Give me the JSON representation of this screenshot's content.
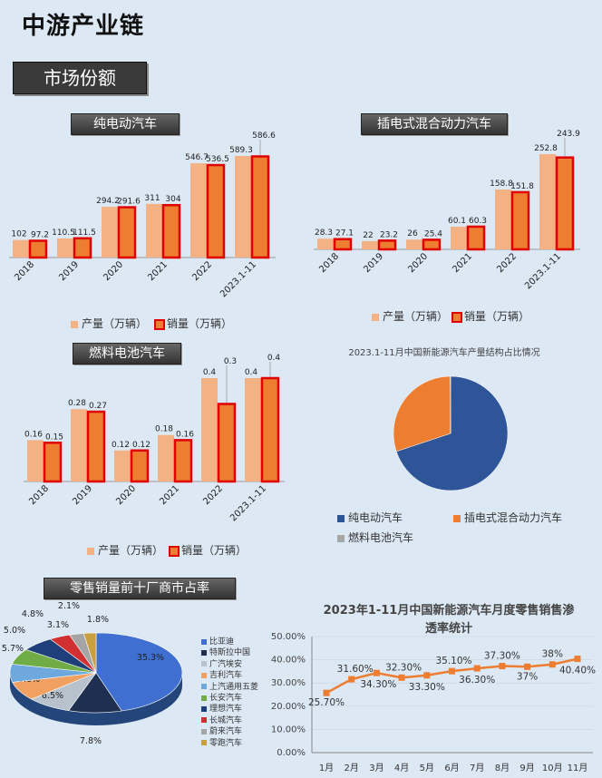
{
  "page": {
    "title": "中游产业链",
    "section": "市场份额"
  },
  "charts": {
    "bev": {
      "title": "纯电动汽车",
      "legend_production": "产量（万辆）",
      "legend_sales": "销量（万辆）"
    },
    "phev": {
      "title": "插电式混合动力汽车",
      "legend_production": "产量（万辆）",
      "legend_sales": "销量（万辆）"
    },
    "fcev": {
      "title": "燃料电池汽车",
      "legend_production": "产量（万辆）",
      "legend_sales": "销量（万辆）"
    },
    "structure": {
      "title": "2023.1-11月中国新能源汽车产量结构占比情况"
    },
    "top10": {
      "title": "零售销量前十厂商市占率"
    },
    "penetration": {
      "title_line1": "2023年1-11月中国新能源汽车月度零售销售渗",
      "title_line2": "透率统计"
    }
  },
  "colors": {
    "production": "#f4b183",
    "sales": "#ed7d31",
    "sales_border": "#e00000",
    "line": "#ed7d31",
    "pie_bev": "#2e5597",
    "pie_phev": "#ed7d31",
    "pie_fcev": "#a5a5a5"
  },
  "chart_data": [
    {
      "id": "bev",
      "type": "bar",
      "categories": [
        "2018",
        "2019",
        "2020",
        "2021",
        "2022",
        "2023.1-11"
      ],
      "series": [
        {
          "name": "产量（万辆）",
          "values": [
            102,
            110.5,
            294.2,
            311,
            546.7,
            589.3
          ],
          "labels": [
            "102",
            "110.5",
            "294.2",
            "311",
            "546.7",
            "589.3"
          ]
        },
        {
          "name": "销量（万辆）",
          "values": [
            97.2,
            111.5,
            291.6,
            304,
            536.5,
            586.6
          ],
          "labels": [
            "97.2",
            "111.5",
            "291.6",
            "304",
            "536.5",
            "586.6"
          ]
        }
      ]
    },
    {
      "id": "phev",
      "type": "bar",
      "categories": [
        "2018",
        "2019",
        "2020",
        "2021",
        "2022",
        "2023.1-11"
      ],
      "series": [
        {
          "name": "产量（万辆）",
          "values": [
            28.3,
            22,
            26,
            60.1,
            158.8,
            252.8
          ],
          "labels": [
            "28.3",
            "22",
            "26",
            "60.1",
            "158.8",
            "252.8"
          ]
        },
        {
          "name": "销量（万辆）",
          "values": [
            27.1,
            23.2,
            25.4,
            60.3,
            151.8,
            243.9
          ],
          "labels": [
            "27.1",
            "23.2",
            "25.4",
            "60.3",
            "151.8",
            "243.9"
          ]
        }
      ]
    },
    {
      "id": "fcev",
      "type": "bar",
      "categories": [
        "2018",
        "2019",
        "2020",
        "2021",
        "2022",
        "2023.1-11"
      ],
      "series": [
        {
          "name": "产量（万辆）",
          "values": [
            0.16,
            0.28,
            0.12,
            0.18,
            0.4,
            0.4
          ],
          "labels": [
            "0.16",
            "0.28",
            "0.12",
            "0.18",
            "0.4",
            "0.4"
          ]
        },
        {
          "name": "销量（万辆）",
          "values": [
            0.15,
            0.27,
            0.12,
            0.16,
            0.3,
            0.4
          ],
          "labels": [
            "0.15",
            "0.27",
            "0.12",
            "0.16",
            "0.3",
            "0.4"
          ]
        }
      ]
    },
    {
      "id": "structure",
      "type": "pie",
      "labels": [
        "纯电动汽车",
        "插电式混合动力汽车",
        "燃料电池汽车"
      ],
      "values": [
        69.9,
        30.0,
        0.1
      ]
    },
    {
      "id": "top10",
      "type": "pie",
      "labels": [
        "比亚迪",
        "特斯拉中国",
        "广汽埃安",
        "吉利汽车",
        "上汽通用五菱",
        "长安汽车",
        "理想汽车",
        "长城汽车",
        "蔚来汽车",
        "零跑汽车"
      ],
      "values": [
        35.3,
        7.8,
        6.5,
        6.0,
        5.7,
        5.0,
        4.8,
        3.1,
        2.1,
        1.8
      ],
      "value_labels": [
        "35.3%",
        "7.8%",
        "6.5%",
        "6.0%",
        "5.7%",
        "5.0%",
        "4.8%",
        "3.1%",
        "2.1%",
        "1.8%"
      ]
    },
    {
      "id": "penetration",
      "type": "line",
      "categories": [
        "1月",
        "2月",
        "3月",
        "4月",
        "5月",
        "6月",
        "7月",
        "8月",
        "9月",
        "10月",
        "11月"
      ],
      "values": [
        25.7,
        31.6,
        34.3,
        32.3,
        33.3,
        35.1,
        36.3,
        37.3,
        37,
        38,
        40.4
      ],
      "value_labels": [
        "25.70%",
        "31.60%",
        "34.30%",
        "32.30%",
        "33.30%",
        "35.10%",
        "36.30%",
        "37.30%",
        "37%",
        "38%",
        "40.40%"
      ],
      "y_ticks": [
        "0.00%",
        "10.00%",
        "20.00%",
        "30.00%",
        "40.00%",
        "50.00%"
      ],
      "ylim": [
        0,
        50
      ]
    }
  ]
}
